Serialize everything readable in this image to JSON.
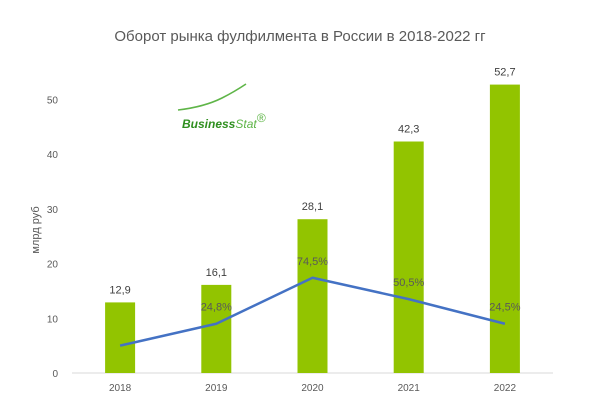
{
  "logo": {
    "part1": "Business",
    "part2": "Stat",
    "mark": "®"
  },
  "chart_data": {
    "type": "bar",
    "title": "Оборот рынка фулфилмента в России в 2018-2022 гг",
    "ylabel": "млрд руб",
    "xlabel": "",
    "ylim": [
      0,
      55
    ],
    "yticks": [
      0,
      10,
      20,
      30,
      40,
      50
    ],
    "categories": [
      "2018",
      "2019",
      "2020",
      "2021",
      "2022"
    ],
    "series": [
      {
        "type": "bar",
        "values": [
          12.9,
          16.1,
          28.1,
          42.3,
          52.7
        ],
        "labels": [
          "12,9",
          "16,1",
          "28,1",
          "42,3",
          "52,7"
        ],
        "color": "#92c400"
      },
      {
        "type": "line",
        "values": [
          5.0,
          9.0,
          17.4,
          13.5,
          9.0
        ],
        "labels": [
          "",
          "24,8%",
          "74,5%",
          "50,5%",
          "24,5%"
        ],
        "color": "#4472c4"
      }
    ],
    "grid": false,
    "legend": "none"
  }
}
